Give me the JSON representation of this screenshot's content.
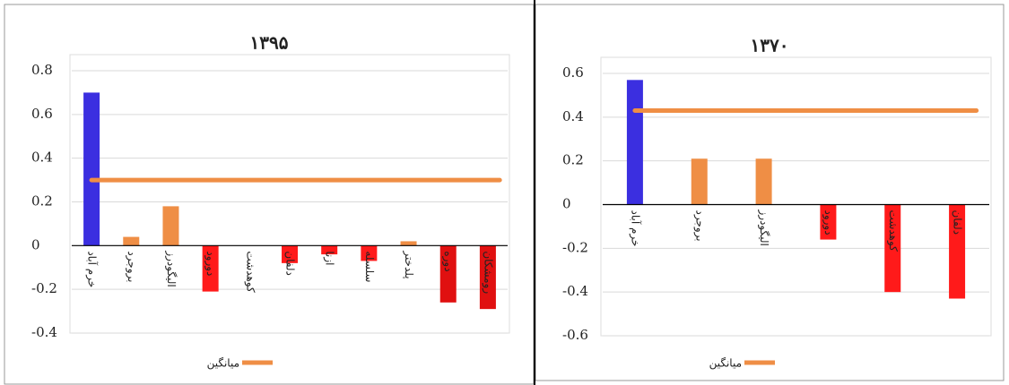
{
  "chart_data": [
    {
      "type": "bar",
      "title": "۱۳۹۵",
      "categories": [
        "خرم آباد",
        "بروجرد",
        "الیگودرز",
        "دورود",
        "کوهدشت",
        "دلفان",
        "ازنا",
        "سلسله",
        "پلدختر",
        "دوره",
        "رومشکان"
      ],
      "values": [
        0.7,
        0.04,
        0.18,
        -0.21,
        0,
        -0.08,
        -0.04,
        -0.07,
        0.02,
        -0.26,
        -0.29
      ],
      "colors": [
        "#3b2fe0",
        "#ef8e45",
        "#ef8e45",
        "#ff1a1a",
        "#ff1a1a",
        "#ff1a1a",
        "#ff1a1a",
        "#ff1a1a",
        "#ef8e45",
        "#e01010",
        "#e01010"
      ],
      "average": {
        "name": "میانگین",
        "value": 0.3,
        "color": "#ef8e45"
      },
      "ylim": [
        -0.4,
        0.8
      ],
      "yticks": [
        -0.4,
        -0.2,
        0,
        0.2,
        0.4,
        0.6,
        0.8
      ],
      "grid": true
    },
    {
      "type": "bar",
      "title": "۱۳۷۰",
      "categories": [
        "خرم آباد",
        "بروجرد",
        "الیگودرز",
        "دورود",
        "کوهدشت",
        "دلفان"
      ],
      "values": [
        0.57,
        0.21,
        0.21,
        -0.16,
        -0.4,
        -0.43
      ],
      "colors": [
        "#3b2fe0",
        "#ef8e45",
        "#ef8e45",
        "#ff1a1a",
        "#ff1a1a",
        "#ff1a1a"
      ],
      "average": {
        "name": "میانگین",
        "value": 0.43,
        "color": "#ef8e45"
      },
      "ylim": [
        -0.6,
        0.6
      ],
      "yticks": [
        -0.6,
        -0.4,
        -0.2,
        0,
        0.2,
        0.4,
        0.6
      ],
      "grid": true
    }
  ]
}
